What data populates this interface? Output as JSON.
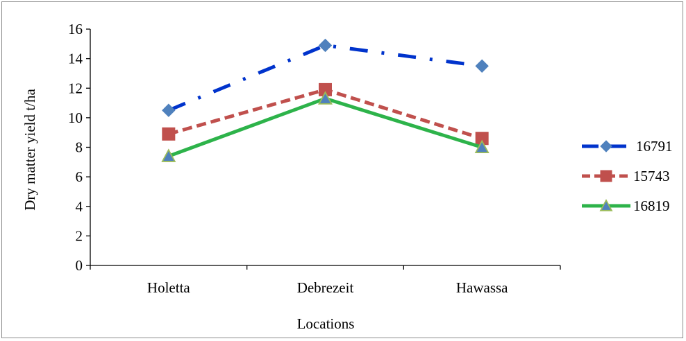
{
  "chart_data": {
    "type": "line",
    "title": "",
    "xlabel": "Locations",
    "ylabel": "Dry matter yield t/ha",
    "categories": [
      "Holetta",
      "Debrezeit",
      "Hawassa"
    ],
    "ylim": [
      0,
      16
    ],
    "yticks": [
      0,
      2,
      4,
      6,
      8,
      10,
      12,
      14,
      16
    ],
    "grid": false,
    "legend_position": "right",
    "series": [
      {
        "name": "16791",
        "values": [
          10.5,
          14.9,
          13.5
        ],
        "line_color": "#0033cc",
        "marker_color": "#4f81bd",
        "marker": "diamond",
        "dash": "long-dash-dot"
      },
      {
        "name": "15743",
        "values": [
          8.9,
          11.9,
          8.6
        ],
        "line_color": "#c0504d",
        "marker_color": "#c0504d",
        "marker": "square",
        "dash": "dash"
      },
      {
        "name": "16819",
        "values": [
          7.4,
          11.3,
          8.0
        ],
        "line_color": "#2db34a",
        "marker_color": "#4f81bd",
        "marker_edge": "#9bbb59",
        "marker": "triangle",
        "dash": "solid"
      }
    ]
  }
}
